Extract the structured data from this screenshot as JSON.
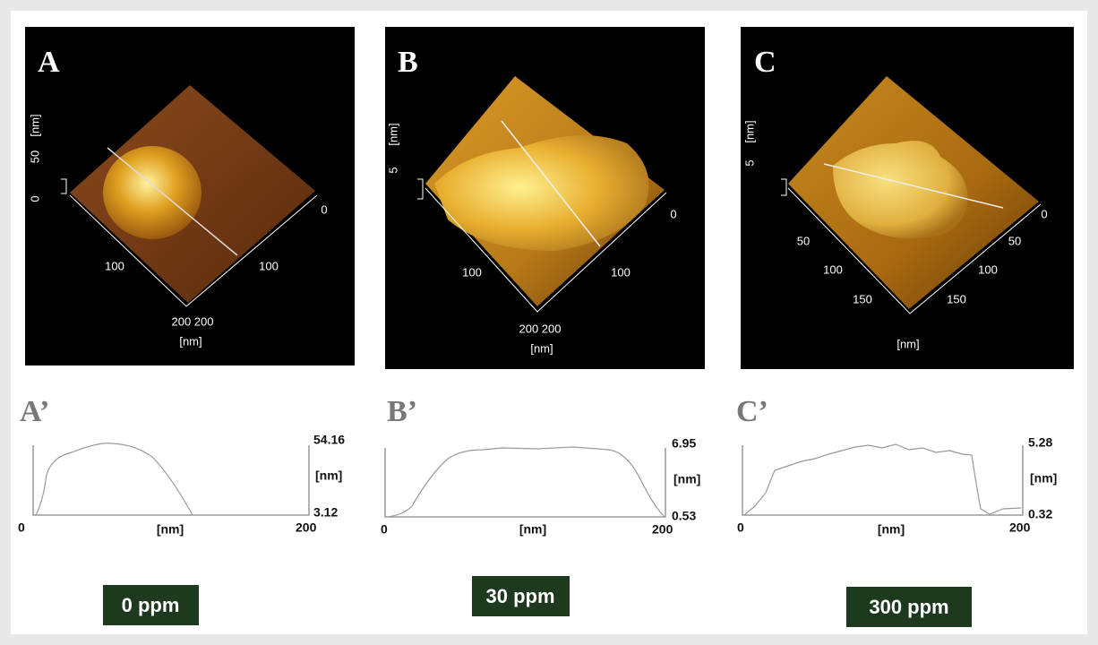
{
  "panels": [
    {
      "label": "A",
      "image_texts": [
        "50",
        "[nm]",
        "0",
        "0",
        "100",
        "100",
        "200 200",
        "[nm]"
      ],
      "profile": {
        "label": "A’",
        "max": "54.16",
        "y_unit": "[nm]",
        "min": "3.12",
        "x_min": "0",
        "x_unit": "[nm]",
        "x_max": "200"
      },
      "concentration": "0 ppm"
    },
    {
      "label": "B",
      "image_texts": [
        "5",
        "[nm]",
        "0",
        "100",
        "100",
        "200 200",
        "[nm]"
      ],
      "profile": {
        "label": "B’",
        "max": "6.95",
        "y_unit": "[nm]",
        "min": "0.53",
        "x_min": "0",
        "x_unit": "[nm]",
        "x_max": "200"
      },
      "concentration": "30 ppm"
    },
    {
      "label": "C",
      "image_texts": [
        "5",
        "[nm]",
        "0",
        "50",
        "100",
        "150",
        "50",
        "100",
        "150",
        "[nm]"
      ],
      "profile": {
        "label": "C’",
        "max": "5.28",
        "y_unit": "[nm]",
        "min": "0.32",
        "x_min": "0",
        "x_unit": "[nm]",
        "x_max": "200"
      },
      "concentration": "300 ppm"
    }
  ]
}
